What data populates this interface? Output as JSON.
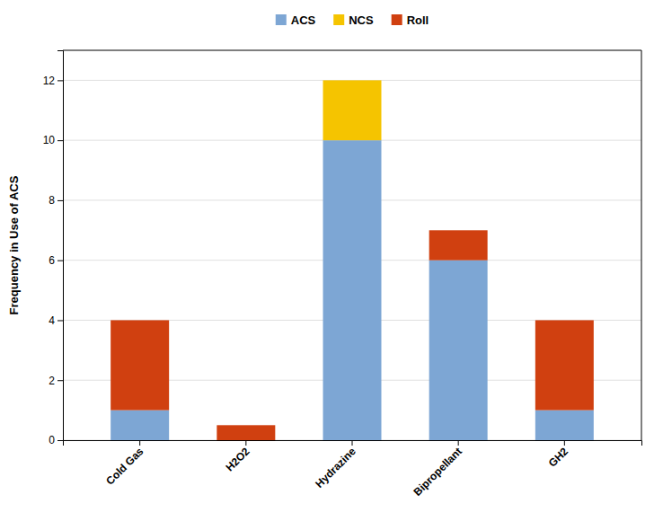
{
  "chart_data": {
    "type": "bar",
    "stacked": true,
    "categories": [
      "Cold Gas",
      "H2O2",
      "Hydrazine",
      "Bipropellant",
      "GH2"
    ],
    "series": [
      {
        "name": "ACS",
        "color": "#7DA6D4",
        "values": [
          1,
          0,
          10,
          6,
          1
        ]
      },
      {
        "name": "NCS",
        "color": "#F5C400",
        "values": [
          0,
          0,
          2,
          0,
          0
        ]
      },
      {
        "name": "Roll",
        "color": "#D04010",
        "values": [
          3,
          0.5,
          0,
          1,
          3
        ]
      }
    ],
    "ylabel": "Frequency in Use of ACS",
    "ylim": [
      0,
      13
    ],
    "yticks": [
      0,
      2,
      4,
      6,
      8,
      10,
      12
    ],
    "grid": true,
    "legend": "top"
  }
}
